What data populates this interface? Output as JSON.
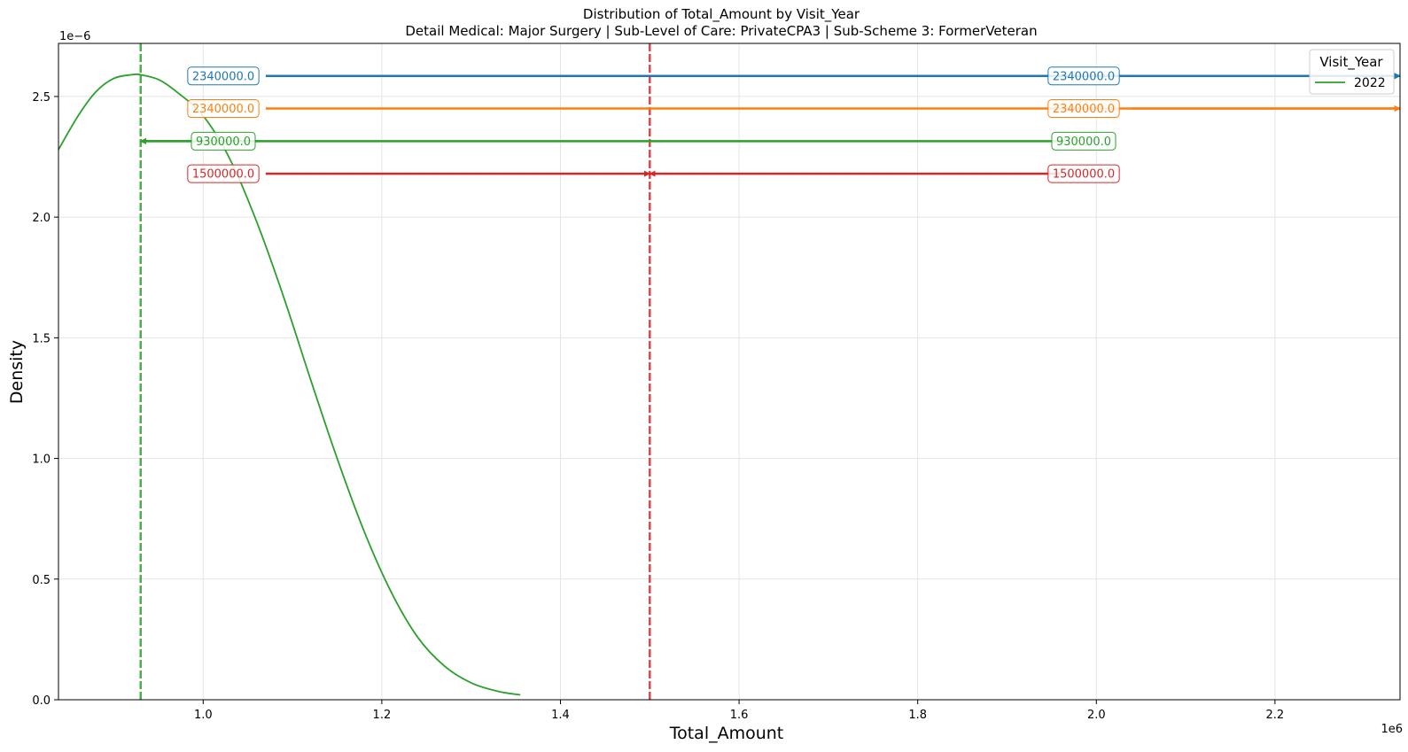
{
  "chart_data": {
    "type": "line",
    "title": "Distribution of Total_Amount by Visit_Year",
    "subtitle": "Detail Medical: Major Surgery | Sub-Level of Care: PrivateCPA3 | Sub-Scheme 3: FormerVeteran",
    "xlabel": "Total_Amount",
    "ylabel": "Density",
    "x_offset_label": "1e6",
    "y_offset_label": "1e−6",
    "xlim": [
      0.838,
      2.34
    ],
    "ylim": [
      0,
      2.72
    ],
    "x_scale": 1000000,
    "y_scale": 1e-06,
    "grid": true,
    "legend_position": "top-right",
    "legend_title": "Visit_Year",
    "x_ticks": [
      {
        "value": 1.0,
        "label": "1.0"
      },
      {
        "value": 1.2,
        "label": "1.2"
      },
      {
        "value": 1.4,
        "label": "1.4"
      },
      {
        "value": 1.6,
        "label": "1.6"
      },
      {
        "value": 1.8,
        "label": "1.8"
      },
      {
        "value": 2.0,
        "label": "2.0"
      },
      {
        "value": 2.2,
        "label": "2.2"
      }
    ],
    "y_ticks": [
      {
        "value": 0.0,
        "label": "0.0"
      },
      {
        "value": 0.5,
        "label": "0.5"
      },
      {
        "value": 1.0,
        "label": "1.0"
      },
      {
        "value": 1.5,
        "label": "1.5"
      },
      {
        "value": 2.0,
        "label": "2.0"
      },
      {
        "value": 2.5,
        "label": "2.5"
      }
    ],
    "series": [
      {
        "name": "2022",
        "color": "#2ca02c",
        "x": [
          0.838,
          0.86,
          0.88,
          0.9,
          0.92,
          0.93,
          0.95,
          0.97,
          1.0,
          1.03,
          1.06,
          1.09,
          1.12,
          1.15,
          1.18,
          1.21,
          1.24,
          1.27,
          1.3,
          1.33,
          1.355
        ],
        "y": [
          2.28,
          2.42,
          2.52,
          2.575,
          2.59,
          2.59,
          2.57,
          2.52,
          2.42,
          2.24,
          1.98,
          1.67,
          1.33,
          1.0,
          0.7,
          0.45,
          0.26,
          0.14,
          0.07,
          0.035,
          0.02
        ]
      }
    ],
    "vertical_lines": [
      {
        "x": 0.93,
        "color": "#2ca02c",
        "style": "dashed"
      },
      {
        "x": 1.5,
        "color": "#d62728",
        "style": "dashed"
      }
    ],
    "annotations": [
      {
        "label": "2340000.0",
        "color": "#1f77b4",
        "y": 2.585,
        "from": 1.07,
        "to": 2.34,
        "arrow_end": "right"
      },
      {
        "label": "2340000.0",
        "color": "#1f77b4",
        "y": 2.585,
        "from": 2.04,
        "to": 2.34,
        "arrow_end": "right"
      },
      {
        "label": "2340000.0",
        "color": "#ff7f0e",
        "y": 2.45,
        "from": 1.07,
        "to": 2.34,
        "arrow_end": "right"
      },
      {
        "label": "2340000.0",
        "color": "#ff7f0e",
        "y": 2.45,
        "from": 2.04,
        "to": 2.34,
        "arrow_end": "right"
      },
      {
        "label": "930000.0",
        "color": "#2ca02c",
        "y": 2.315,
        "from": 1.062,
        "to": 0.93,
        "arrow_end": "left"
      },
      {
        "label": "930000.0",
        "color": "#2ca02c",
        "y": 2.315,
        "from": 1.966,
        "to": 0.93,
        "arrow_end": "left"
      },
      {
        "label": "1500000.0",
        "color": "#d62728",
        "y": 2.18,
        "from": 1.07,
        "to": 1.5,
        "arrow_end": "right"
      },
      {
        "label": "1500000.0",
        "color": "#d62728",
        "y": 2.18,
        "from": 1.96,
        "to": 1.5,
        "arrow_end": "left"
      }
    ]
  }
}
